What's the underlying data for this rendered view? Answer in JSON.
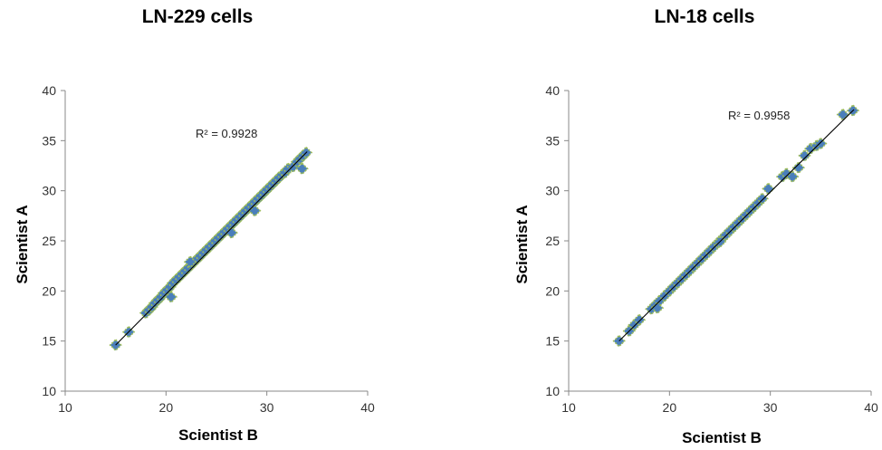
{
  "chart_data": [
    {
      "type": "scatter",
      "title": "LN-229 cells",
      "xlabel": "Scientist B",
      "ylabel": "Scientist A",
      "xlim": [
        10,
        40
      ],
      "ylim": [
        10,
        40
      ],
      "xticks": [
        10,
        20,
        30,
        40
      ],
      "yticks": [
        10,
        15,
        20,
        25,
        30,
        35,
        40
      ],
      "grid": false,
      "legend": "none",
      "trendline": {
        "type": "linear",
        "from": [
          15,
          14.6
        ],
        "to": [
          34,
          33.9
        ]
      },
      "annotation": "R² = 0.9928",
      "marker_color": "#4a7ebb",
      "marker_edge": "#9bbb59",
      "line_color": "#000000",
      "x": [
        15.0,
        16.3,
        18.0,
        18.3,
        18.6,
        18.9,
        19.2,
        19.5,
        19.8,
        20.1,
        20.4,
        20.7,
        21.0,
        21.3,
        21.6,
        21.9,
        22.2,
        22.5,
        22.8,
        23.1,
        23.4,
        23.7,
        24.0,
        24.3,
        24.6,
        24.9,
        25.2,
        25.5,
        25.8,
        26.1,
        26.4,
        26.7,
        27.0,
        27.3,
        27.6,
        27.9,
        28.2,
        28.5,
        28.8,
        29.1,
        29.4,
        29.7,
        30.0,
        30.3,
        30.6,
        30.9,
        31.2,
        31.5,
        31.8,
        32.1,
        32.6,
        33.0,
        33.3,
        33.6,
        33.9,
        20.5,
        22.4,
        26.5,
        28.8,
        33.5
      ],
      "y": [
        14.6,
        15.9,
        17.8,
        18.1,
        18.4,
        18.8,
        19.1,
        19.4,
        19.8,
        20.1,
        20.4,
        20.8,
        21.1,
        21.4,
        21.7,
        22.0,
        22.3,
        22.6,
        22.9,
        23.2,
        23.5,
        23.8,
        24.1,
        24.4,
        24.7,
        25.0,
        25.3,
        25.6,
        25.9,
        26.2,
        26.5,
        26.8,
        27.1,
        27.4,
        27.7,
        28.0,
        28.3,
        28.6,
        28.9,
        29.2,
        29.5,
        29.8,
        30.1,
        30.4,
        30.7,
        31.0,
        31.3,
        31.6,
        31.8,
        32.2,
        32.4,
        32.9,
        33.2,
        33.5,
        33.8,
        19.4,
        22.9,
        25.8,
        28.0,
        32.2
      ]
    },
    {
      "type": "scatter",
      "title": "LN-18 cells",
      "xlabel": "Scientist B",
      "ylabel": "Scientist A",
      "xlim": [
        10,
        40
      ],
      "ylim": [
        10,
        40
      ],
      "xticks": [
        10,
        20,
        30,
        40
      ],
      "yticks": [
        10,
        15,
        20,
        25,
        30,
        35,
        40
      ],
      "grid": false,
      "legend": "none",
      "trendline": {
        "type": "linear",
        "from": [
          15,
          15.0
        ],
        "to": [
          38.3,
          38.1
        ]
      },
      "annotation": "R² = 0.9958",
      "marker_color": "#4a7ebb",
      "marker_edge": "#9bbb59",
      "line_color": "#000000",
      "x": [
        15.0,
        16.0,
        16.5,
        17.0,
        18.2,
        18.6,
        19.0,
        19.5,
        20.0,
        20.4,
        20.8,
        21.2,
        21.6,
        22.0,
        22.4,
        22.8,
        23.2,
        23.6,
        24.0,
        24.4,
        24.8,
        25.2,
        25.6,
        26.0,
        26.4,
        26.8,
        27.2,
        27.6,
        28.0,
        28.4,
        28.8,
        29.2,
        29.8,
        31.2,
        31.6,
        32.2,
        32.8,
        33.4,
        34.0,
        34.6,
        35.0,
        37.2,
        38.2,
        18.8,
        25.0
      ],
      "y": [
        15.0,
        16.0,
        16.6,
        17.1,
        18.2,
        18.6,
        19.0,
        19.5,
        20.0,
        20.4,
        20.8,
        21.2,
        21.6,
        22.0,
        22.4,
        22.8,
        23.2,
        23.6,
        24.0,
        24.4,
        24.8,
        25.2,
        25.6,
        26.0,
        26.4,
        26.8,
        27.2,
        27.6,
        28.0,
        28.4,
        28.8,
        29.2,
        30.2,
        31.4,
        31.7,
        31.4,
        32.3,
        33.5,
        34.2,
        34.5,
        34.7,
        37.6,
        38.0,
        18.3,
        24.9
      ]
    }
  ]
}
